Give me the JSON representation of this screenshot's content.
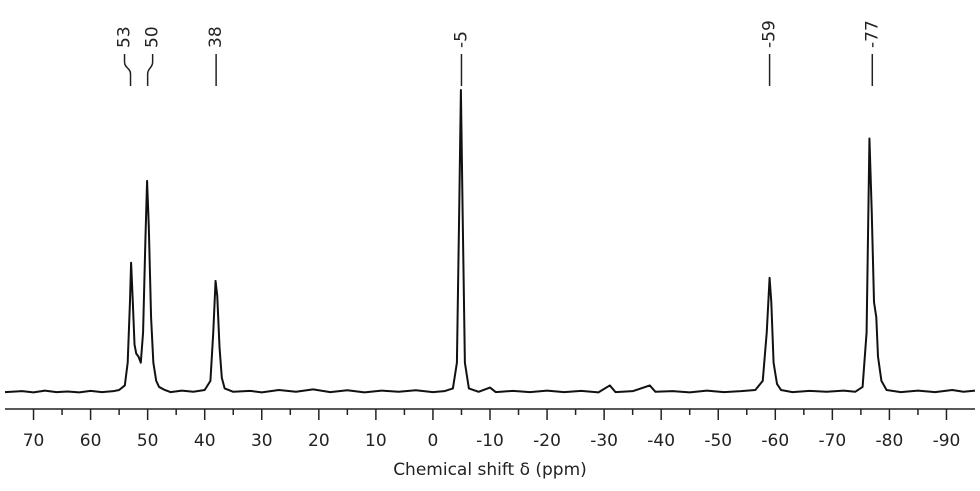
{
  "chart_data": {
    "type": "line",
    "x_label": "Chemical shift δ (ppm)",
    "xlim": [
      75,
      -95
    ],
    "xticks": [
      70,
      60,
      50,
      40,
      30,
      20,
      10,
      0,
      -10,
      -20,
      -30,
      -40,
      -50,
      -60,
      -70,
      -80,
      -90
    ],
    "ylim": [
      0,
      100
    ],
    "color": "#111111",
    "peak_labels": [
      53,
      50,
      38,
      -5,
      -59,
      -77
    ],
    "x": [
      75,
      72,
      70,
      68,
      66,
      64,
      62,
      60,
      58,
      56,
      55,
      54,
      53.5,
      53.1,
      52.9,
      52.6,
      52.3,
      52,
      51.6,
      51.2,
      50.8,
      50.4,
      50.1,
      49.8,
      49.4,
      49,
      48.5,
      48,
      47,
      46,
      44,
      42,
      40,
      39,
      38.5,
      38.1,
      37.8,
      37.4,
      37,
      36.5,
      35,
      32,
      30,
      27,
      24,
      21,
      18,
      15,
      12,
      9,
      6,
      3,
      0,
      -2,
      -3.5,
      -4.2,
      -4.6,
      -4.9,
      -5.2,
      -5.6,
      -6.3,
      -8,
      -10,
      -11,
      -14,
      -17,
      -20,
      -23,
      -26,
      -29,
      -31,
      -32,
      -35,
      -38,
      -39,
      -42,
      -45,
      -48,
      -51,
      -54,
      -56.5,
      -57.8,
      -58.5,
      -59,
      -59.3,
      -59.7,
      -60.3,
      -61,
      -63,
      -66,
      -69,
      -72,
      -74,
      -75.3,
      -76,
      -76.5,
      -76.9,
      -77.3,
      -77.7,
      -78,
      -78.6,
      -79.5,
      -82,
      -85,
      -88,
      -91,
      -93,
      -95
    ],
    "values": [
      0.3,
      0.6,
      0.2,
      0.8,
      0.3,
      0.5,
      0.2,
      0.7,
      0.3,
      0.6,
      1,
      2.5,
      10,
      30,
      43,
      30,
      16,
      13,
      12,
      10,
      20,
      50,
      70,
      55,
      25,
      10,
      4,
      2,
      1,
      0.3,
      0.8,
      0.4,
      1,
      4,
      20,
      37,
      32,
      15,
      5,
      1.5,
      0.4,
      0.7,
      0.2,
      1,
      0.4,
      1.2,
      0.3,
      0.9,
      0.2,
      0.8,
      0.4,
      0.9,
      0.3,
      0.6,
      1.5,
      10,
      60,
      100,
      60,
      10,
      1.5,
      0.4,
      1.8,
      0.3,
      0.7,
      0.3,
      0.8,
      0.3,
      0.7,
      0.2,
      2.5,
      0.3,
      0.6,
      2.5,
      0.4,
      0.6,
      0.2,
      0.8,
      0.3,
      0.6,
      1,
      4,
      20,
      38,
      30,
      10,
      3,
      1,
      0.3,
      0.7,
      0.4,
      0.8,
      0.4,
      2,
      20,
      84,
      60,
      30,
      25,
      12,
      4,
      1,
      0.3,
      0.8,
      0.3,
      1,
      0.4,
      0.8
    ]
  }
}
